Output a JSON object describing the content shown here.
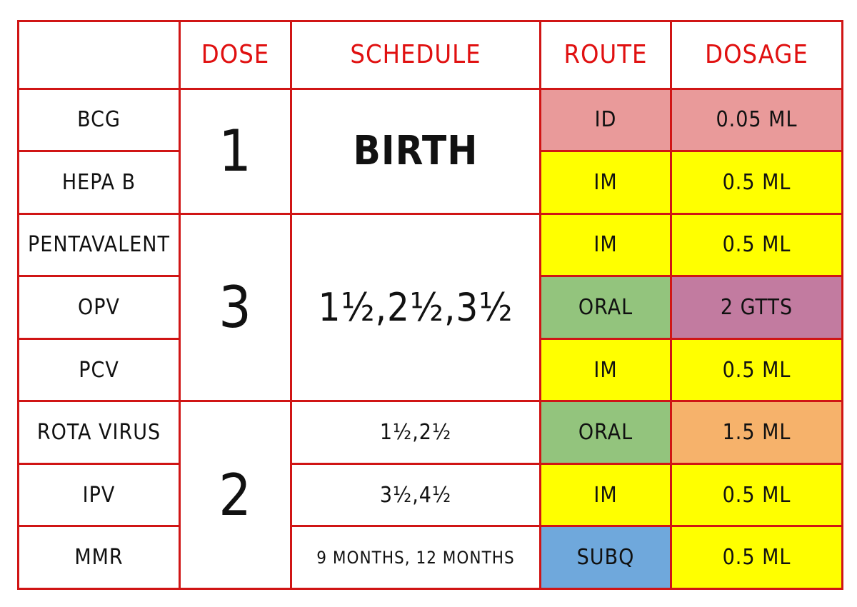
{
  "table": {
    "header": [
      "DOSE",
      "SCHEDULE",
      "ROUTE",
      "DOSAGE"
    ],
    "doses": [
      1,
      3,
      2
    ],
    "schedules": [
      "BIRTH",
      "1½,2½,3½",
      "1½,2½",
      "3½,4½",
      "9 MONTHS, 12 MONTHS"
    ],
    "rows": [
      {
        "vaccine": "BCG",
        "route": "ID",
        "dosage": "0.05 ML"
      },
      {
        "vaccine": "HEPA B",
        "route": "IM",
        "dosage": "0.5 ML"
      },
      {
        "vaccine": "PENTAVALENT",
        "route": "IM",
        "dosage": "0.5 ML"
      },
      {
        "vaccine": "OPV",
        "route": "ORAL",
        "dosage": "2 GTTS"
      },
      {
        "vaccine": "PCV",
        "route": "IM",
        "dosage": "0.5 ML"
      },
      {
        "vaccine": "ROTA VIRUS",
        "route": "ORAL",
        "dosage": "1.5 ML"
      },
      {
        "vaccine": "IPV",
        "route": "IM",
        "dosage": "0.5 ML"
      },
      {
        "vaccine": "MMR",
        "route": "SUBQ",
        "dosage": "0.5 ML"
      }
    ]
  }
}
